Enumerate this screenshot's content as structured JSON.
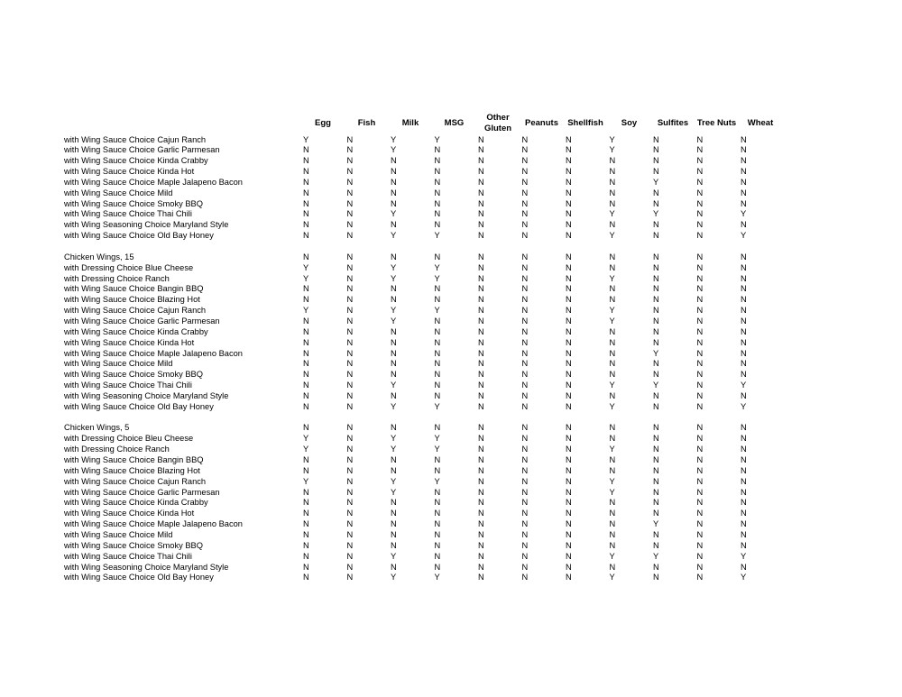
{
  "columns": [
    "Egg",
    "Fish",
    "Milk",
    "MSG",
    "Other Gluten",
    "Peanuts",
    "Shellfish",
    "Soy",
    "Sulfites",
    "Tree Nuts",
    "Wheat"
  ],
  "sections": [
    {
      "rows": [
        {
          "item": "with Wing Sauce Choice Cajun Ranch",
          "values": [
            "Y",
            "N",
            "Y",
            "Y",
            "N",
            "N",
            "N",
            "Y",
            "N",
            "N",
            "N"
          ]
        },
        {
          "item": "with Wing Sauce Choice Garlic Parmesan",
          "values": [
            "N",
            "N",
            "Y",
            "N",
            "N",
            "N",
            "N",
            "Y",
            "N",
            "N",
            "N"
          ]
        },
        {
          "item": "with Wing Sauce Choice Kinda Crabby",
          "values": [
            "N",
            "N",
            "N",
            "N",
            "N",
            "N",
            "N",
            "N",
            "N",
            "N",
            "N"
          ]
        },
        {
          "item": "with Wing Sauce Choice Kinda Hot",
          "values": [
            "N",
            "N",
            "N",
            "N",
            "N",
            "N",
            "N",
            "N",
            "N",
            "N",
            "N"
          ]
        },
        {
          "item": "with Wing Sauce Choice Maple Jalapeno Bacon",
          "values": [
            "N",
            "N",
            "N",
            "N",
            "N",
            "N",
            "N",
            "N",
            "Y",
            "N",
            "N"
          ]
        },
        {
          "item": "with Wing Sauce Choice Mild",
          "values": [
            "N",
            "N",
            "N",
            "N",
            "N",
            "N",
            "N",
            "N",
            "N",
            "N",
            "N"
          ]
        },
        {
          "item": "with Wing Sauce Choice Smoky BBQ",
          "values": [
            "N",
            "N",
            "N",
            "N",
            "N",
            "N",
            "N",
            "N",
            "N",
            "N",
            "N"
          ]
        },
        {
          "item": "with Wing Sauce Choice Thai Chili",
          "values": [
            "N",
            "N",
            "Y",
            "N",
            "N",
            "N",
            "N",
            "Y",
            "Y",
            "N",
            "Y"
          ]
        },
        {
          "item": "with Wing Seasoning Choice Maryland Style",
          "values": [
            "N",
            "N",
            "N",
            "N",
            "N",
            "N",
            "N",
            "N",
            "N",
            "N",
            "N"
          ]
        },
        {
          "item": "with Wing Sauce Choice Old Bay Honey",
          "values": [
            "N",
            "N",
            "Y",
            "Y",
            "N",
            "N",
            "N",
            "Y",
            "N",
            "N",
            "Y"
          ]
        }
      ]
    },
    {
      "rows": [
        {
          "item": "Chicken Wings, 15",
          "values": [
            "N",
            "N",
            "N",
            "N",
            "N",
            "N",
            "N",
            "N",
            "N",
            "N",
            "N"
          ]
        },
        {
          "item": "with Dressing Choice Blue Cheese",
          "values": [
            "Y",
            "N",
            "Y",
            "Y",
            "N",
            "N",
            "N",
            "N",
            "N",
            "N",
            "N"
          ]
        },
        {
          "item": "with Dressing Choice Ranch",
          "values": [
            "Y",
            "N",
            "Y",
            "Y",
            "N",
            "N",
            "N",
            "Y",
            "N",
            "N",
            "N"
          ]
        },
        {
          "item": "with Wing Sauce Choice Bangin BBQ",
          "values": [
            "N",
            "N",
            "N",
            "N",
            "N",
            "N",
            "N",
            "N",
            "N",
            "N",
            "N"
          ]
        },
        {
          "item": "with Wing Sauce Choice Blazing Hot",
          "values": [
            "N",
            "N",
            "N",
            "N",
            "N",
            "N",
            "N",
            "N",
            "N",
            "N",
            "N"
          ]
        },
        {
          "item": "with Wing Sauce Choice Cajun Ranch",
          "values": [
            "Y",
            "N",
            "Y",
            "Y",
            "N",
            "N",
            "N",
            "Y",
            "N",
            "N",
            "N"
          ]
        },
        {
          "item": "with Wing Sauce Choice Garlic Parmesan",
          "values": [
            "N",
            "N",
            "Y",
            "N",
            "N",
            "N",
            "N",
            "Y",
            "N",
            "N",
            "N"
          ]
        },
        {
          "item": "with Wing Sauce Choice Kinda Crabby",
          "values": [
            "N",
            "N",
            "N",
            "N",
            "N",
            "N",
            "N",
            "N",
            "N",
            "N",
            "N"
          ]
        },
        {
          "item": "with Wing Sauce Choice Kinda Hot",
          "values": [
            "N",
            "N",
            "N",
            "N",
            "N",
            "N",
            "N",
            "N",
            "N",
            "N",
            "N"
          ]
        },
        {
          "item": "with Wing Sauce Choice Maple Jalapeno Bacon",
          "values": [
            "N",
            "N",
            "N",
            "N",
            "N",
            "N",
            "N",
            "N",
            "Y",
            "N",
            "N"
          ]
        },
        {
          "item": "with Wing Sauce Choice Mild",
          "values": [
            "N",
            "N",
            "N",
            "N",
            "N",
            "N",
            "N",
            "N",
            "N",
            "N",
            "N"
          ]
        },
        {
          "item": "with Wing Sauce Choice Smoky BBQ",
          "values": [
            "N",
            "N",
            "N",
            "N",
            "N",
            "N",
            "N",
            "N",
            "N",
            "N",
            "N"
          ]
        },
        {
          "item": "with Wing Sauce Choice Thai Chili",
          "values": [
            "N",
            "N",
            "Y",
            "N",
            "N",
            "N",
            "N",
            "Y",
            "Y",
            "N",
            "Y"
          ]
        },
        {
          "item": "with Wing Seasoning Choice Maryland Style",
          "values": [
            "N",
            "N",
            "N",
            "N",
            "N",
            "N",
            "N",
            "N",
            "N",
            "N",
            "N"
          ]
        },
        {
          "item": "with Wing Sauce Choice Old Bay Honey",
          "values": [
            "N",
            "N",
            "Y",
            "Y",
            "N",
            "N",
            "N",
            "Y",
            "N",
            "N",
            "Y"
          ]
        }
      ]
    },
    {
      "rows": [
        {
          "item": "Chicken Wings, 5",
          "values": [
            "N",
            "N",
            "N",
            "N",
            "N",
            "N",
            "N",
            "N",
            "N",
            "N",
            "N"
          ]
        },
        {
          "item": "with Dressing Choice Bleu Cheese",
          "values": [
            "Y",
            "N",
            "Y",
            "Y",
            "N",
            "N",
            "N",
            "N",
            "N",
            "N",
            "N"
          ]
        },
        {
          "item": "with Dressing Choice Ranch",
          "values": [
            "Y",
            "N",
            "Y",
            "Y",
            "N",
            "N",
            "N",
            "Y",
            "N",
            "N",
            "N"
          ]
        },
        {
          "item": "with Wing Sauce Choice Bangin BBQ",
          "values": [
            "N",
            "N",
            "N",
            "N",
            "N",
            "N",
            "N",
            "N",
            "N",
            "N",
            "N"
          ]
        },
        {
          "item": "with Wing Sauce Choice Blazing Hot",
          "values": [
            "N",
            "N",
            "N",
            "N",
            "N",
            "N",
            "N",
            "N",
            "N",
            "N",
            "N"
          ]
        },
        {
          "item": "with Wing Sauce Choice Cajun Ranch",
          "values": [
            "Y",
            "N",
            "Y",
            "Y",
            "N",
            "N",
            "N",
            "Y",
            "N",
            "N",
            "N"
          ]
        },
        {
          "item": "with Wing Sauce Choice Garlic Parmesan",
          "values": [
            "N",
            "N",
            "Y",
            "N",
            "N",
            "N",
            "N",
            "Y",
            "N",
            "N",
            "N"
          ]
        },
        {
          "item": "with Wing Sauce Choice Kinda Crabby",
          "values": [
            "N",
            "N",
            "N",
            "N",
            "N",
            "N",
            "N",
            "N",
            "N",
            "N",
            "N"
          ]
        },
        {
          "item": "with Wing Sauce Choice Kinda Hot",
          "values": [
            "N",
            "N",
            "N",
            "N",
            "N",
            "N",
            "N",
            "N",
            "N",
            "N",
            "N"
          ]
        },
        {
          "item": "with Wing Sauce Choice Maple Jalapeno Bacon",
          "values": [
            "N",
            "N",
            "N",
            "N",
            "N",
            "N",
            "N",
            "N",
            "Y",
            "N",
            "N"
          ]
        },
        {
          "item": "with Wing Sauce Choice Mild",
          "values": [
            "N",
            "N",
            "N",
            "N",
            "N",
            "N",
            "N",
            "N",
            "N",
            "N",
            "N"
          ]
        },
        {
          "item": "with Wing Sauce Choice Smoky BBQ",
          "values": [
            "N",
            "N",
            "N",
            "N",
            "N",
            "N",
            "N",
            "N",
            "N",
            "N",
            "N"
          ]
        },
        {
          "item": "with Wing Sauce Choice Thai Chili",
          "values": [
            "N",
            "N",
            "Y",
            "N",
            "N",
            "N",
            "N",
            "Y",
            "Y",
            "N",
            "Y"
          ]
        },
        {
          "item": "with Wing Seasoning Choice Maryland Style",
          "values": [
            "N",
            "N",
            "N",
            "N",
            "N",
            "N",
            "N",
            "N",
            "N",
            "N",
            "N"
          ]
        },
        {
          "item": "with Wing Sauce Choice Old Bay Honey",
          "values": [
            "N",
            "N",
            "Y",
            "Y",
            "N",
            "N",
            "N",
            "Y",
            "N",
            "N",
            "Y"
          ]
        }
      ]
    }
  ]
}
